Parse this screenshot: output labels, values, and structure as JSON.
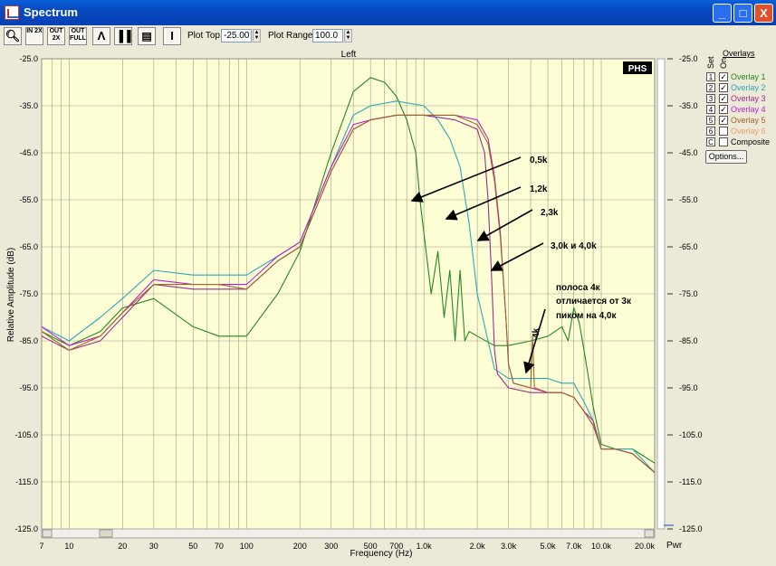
{
  "window": {
    "title": "Spectrum",
    "buttons": {
      "minimize": "_",
      "maximize": "□",
      "close": "X"
    }
  },
  "toolbar": {
    "icons": [
      "magnifier-icon",
      "zoom-in-2x-icon",
      "zoom-out-2x-icon",
      "zoom-out-full-icon",
      "peak-icon",
      "bars-icon",
      "table-icon",
      "cursor-icon"
    ],
    "zoom_in_text": "IN 2X",
    "zoom_out_text": "OUT 2X",
    "zoom_full_text": "OUT FULL",
    "plot_top_label": "Plot Top:",
    "plot_top_value": "-25.00",
    "plot_range_label": "Plot Range:",
    "plot_range_value": "100.0"
  },
  "overlays": {
    "header": "Overlays",
    "col_set": "Set",
    "col_on": "On",
    "items": [
      {
        "num": "1",
        "checked": true,
        "label": "Overlay 1",
        "color": "#1f8a1f"
      },
      {
        "num": "2",
        "checked": true,
        "label": "Overlay 2",
        "color": "#2aa9b8"
      },
      {
        "num": "3",
        "checked": true,
        "label": "Overlay 3",
        "color": "#a02a8e"
      },
      {
        "num": "4",
        "checked": true,
        "label": "Overlay 4",
        "color": "#c020c8"
      },
      {
        "num": "5",
        "checked": true,
        "label": "Overlay 5",
        "color": "#a0662a"
      },
      {
        "num": "6",
        "checked": false,
        "label": "Overlay 6",
        "color": "#e8a070"
      },
      {
        "num": "C",
        "checked": false,
        "label": "Composite",
        "color": "#000000"
      }
    ],
    "options_button": "Options..."
  },
  "chart_data": {
    "type": "line",
    "channel_title": "Left",
    "logo": "PHS",
    "xlabel": "Frequency (Hz)",
    "ylabel": "Relative Amplitude (dB)",
    "x_scale": "log",
    "xlim": [
      7,
      20000
    ],
    "ylim": [
      -125,
      -25
    ],
    "yticks": [
      -25,
      -35,
      -45,
      -55,
      -65,
      -75,
      -85,
      -95,
      -105,
      -115,
      -125
    ],
    "ytick_labels": [
      "-25.0",
      "-35.0",
      "-45.0",
      "-55.0",
      "-65.0",
      "-75.0",
      "-85.0",
      "-95.0",
      "-105.0",
      "-115.0",
      "-125.0"
    ],
    "xticks": [
      7,
      10,
      20,
      30,
      50,
      70,
      100,
      200,
      300,
      500,
      700,
      1000,
      2000,
      3000,
      5000,
      7000,
      10000,
      20000
    ],
    "xtick_labels": [
      "7",
      "10",
      "20",
      "30",
      "50",
      "70",
      "100",
      "200",
      "300",
      "500",
      "700",
      "1.0k",
      "2.0k",
      "3.0k",
      "5.0k",
      "7.0k",
      "10.0k",
      "20.0k"
    ],
    "right_axis_unit": "Pwr",
    "grid": true,
    "annotations": [
      {
        "text": "0,5k",
        "x": 900,
        "y": -46
      },
      {
        "text": "1,2k",
        "x": 1450,
        "y": -50
      },
      {
        "text": "2,3k",
        "x": 2100,
        "y": -55
      },
      {
        "text": "3,0k  и  4,0k",
        "x": 2500,
        "y": -62
      },
      {
        "text": "полоса 4к",
        "x": null,
        "y": null
      },
      {
        "text": "отличается от 3к",
        "x": null,
        "y": null
      },
      {
        "text": "пиком на 4,0к",
        "x": 4000,
        "y": -84
      },
      {
        "text": "4k",
        "x": 3900,
        "y": -75
      }
    ],
    "series": [
      {
        "name": "Overlay 1",
        "color": "#1f8a1f",
        "x": [
          7,
          10,
          15,
          20,
          30,
          50,
          70,
          100,
          150,
          200,
          300,
          400,
          500,
          600,
          700,
          800,
          900,
          950,
          1000,
          1100,
          1200,
          1300,
          1400,
          1500,
          1600,
          1700,
          1800,
          2000,
          2500,
          3000,
          4000,
          5000,
          6000,
          6500,
          7000,
          7500,
          8000,
          9000,
          10000,
          12000,
          15000,
          20000
        ],
        "y": [
          -83,
          -86,
          -83,
          -78,
          -76,
          -82,
          -84,
          -84,
          -75,
          -66,
          -45,
          -32,
          -29,
          -30,
          -33,
          -38,
          -45,
          -55,
          -62,
          -75,
          -66,
          -80,
          -70,
          -85,
          -70,
          -85,
          -83,
          -84,
          -86,
          -86,
          -85,
          -84,
          -82,
          -85,
          -78,
          -81,
          -87,
          -99,
          -107,
          -108,
          -108,
          -111
        ]
      },
      {
        "name": "Overlay 2",
        "color": "#2aa9b8",
        "x": [
          7,
          10,
          15,
          20,
          30,
          50,
          70,
          100,
          150,
          200,
          300,
          400,
          500,
          700,
          1000,
          1200,
          1400,
          1600,
          1800,
          2000,
          2500,
          3000,
          4000,
          5000,
          6000,
          7000,
          8000,
          9000,
          10000,
          12000,
          15000,
          20000
        ],
        "y": [
          -82,
          -85,
          -80,
          -76,
          -70,
          -71,
          -71,
          -71,
          -67,
          -64,
          -48,
          -37,
          -35,
          -34,
          -35,
          -38,
          -42,
          -48,
          -60,
          -75,
          -91,
          -93,
          -93,
          -93,
          -94,
          -94,
          -98,
          -102,
          -108,
          -108,
          -108,
          -113
        ]
      },
      {
        "name": "Overlay 3",
        "color": "#a02a8e",
        "x": [
          7,
          10,
          15,
          20,
          30,
          50,
          70,
          100,
          150,
          200,
          300,
          400,
          500,
          700,
          1000,
          1500,
          2000,
          2200,
          2300,
          2400,
          2500,
          2600,
          3000,
          4000,
          5000,
          6000,
          7000,
          8000,
          9000,
          10000,
          12000,
          15000,
          20000
        ],
        "y": [
          -84,
          -87,
          -85,
          -80,
          -73,
          -74,
          -74,
          -74,
          -68,
          -65,
          -49,
          -40,
          -38,
          -37,
          -37,
          -38,
          -40,
          -45,
          -55,
          -70,
          -87,
          -92,
          -95,
          -96,
          -96,
          -96,
          -97,
          -100,
          -102,
          -108,
          -108,
          -109,
          -113
        ]
      },
      {
        "name": "Overlay 4",
        "color": "#c020c8",
        "x": [
          7,
          10,
          15,
          20,
          30,
          50,
          70,
          100,
          150,
          200,
          300,
          400,
          500,
          700,
          1000,
          1500,
          2000,
          2300,
          2500,
          2700,
          2900,
          3000,
          3200,
          4000,
          5000,
          6000,
          7000,
          8000,
          9000,
          10000,
          12000,
          15000,
          20000
        ],
        "y": [
          -82,
          -86,
          -84,
          -79,
          -72,
          -73,
          -73,
          -73,
          -67,
          -64,
          -48,
          -39,
          -38,
          -37,
          -37,
          -37,
          -38,
          -42,
          -50,
          -62,
          -80,
          -90,
          -94,
          -95,
          -96,
          -96,
          -97,
          -100,
          -103,
          -108,
          -108,
          -109,
          -113
        ]
      },
      {
        "name": "Overlay 5",
        "color": "#a0662a",
        "x": [
          7,
          10,
          15,
          20,
          30,
          50,
          70,
          100,
          150,
          200,
          300,
          400,
          500,
          700,
          1000,
          1500,
          2000,
          2300,
          2500,
          2700,
          2900,
          3000,
          3200,
          4000,
          4100,
          4200,
          5000,
          6000,
          7000,
          8000,
          9000,
          9600,
          10000,
          12000,
          15000,
          20000
        ],
        "y": [
          -83,
          -87,
          -84,
          -79,
          -73,
          -73,
          -73,
          -74,
          -68,
          -65,
          -49,
          -40,
          -38,
          -37,
          -37,
          -37,
          -39,
          -43,
          -51,
          -63,
          -80,
          -90,
          -94,
          -95,
          -84,
          -95,
          -96,
          -96,
          -97,
          -100,
          -103,
          -106,
          -108,
          -108,
          -109,
          -113
        ]
      }
    ]
  }
}
